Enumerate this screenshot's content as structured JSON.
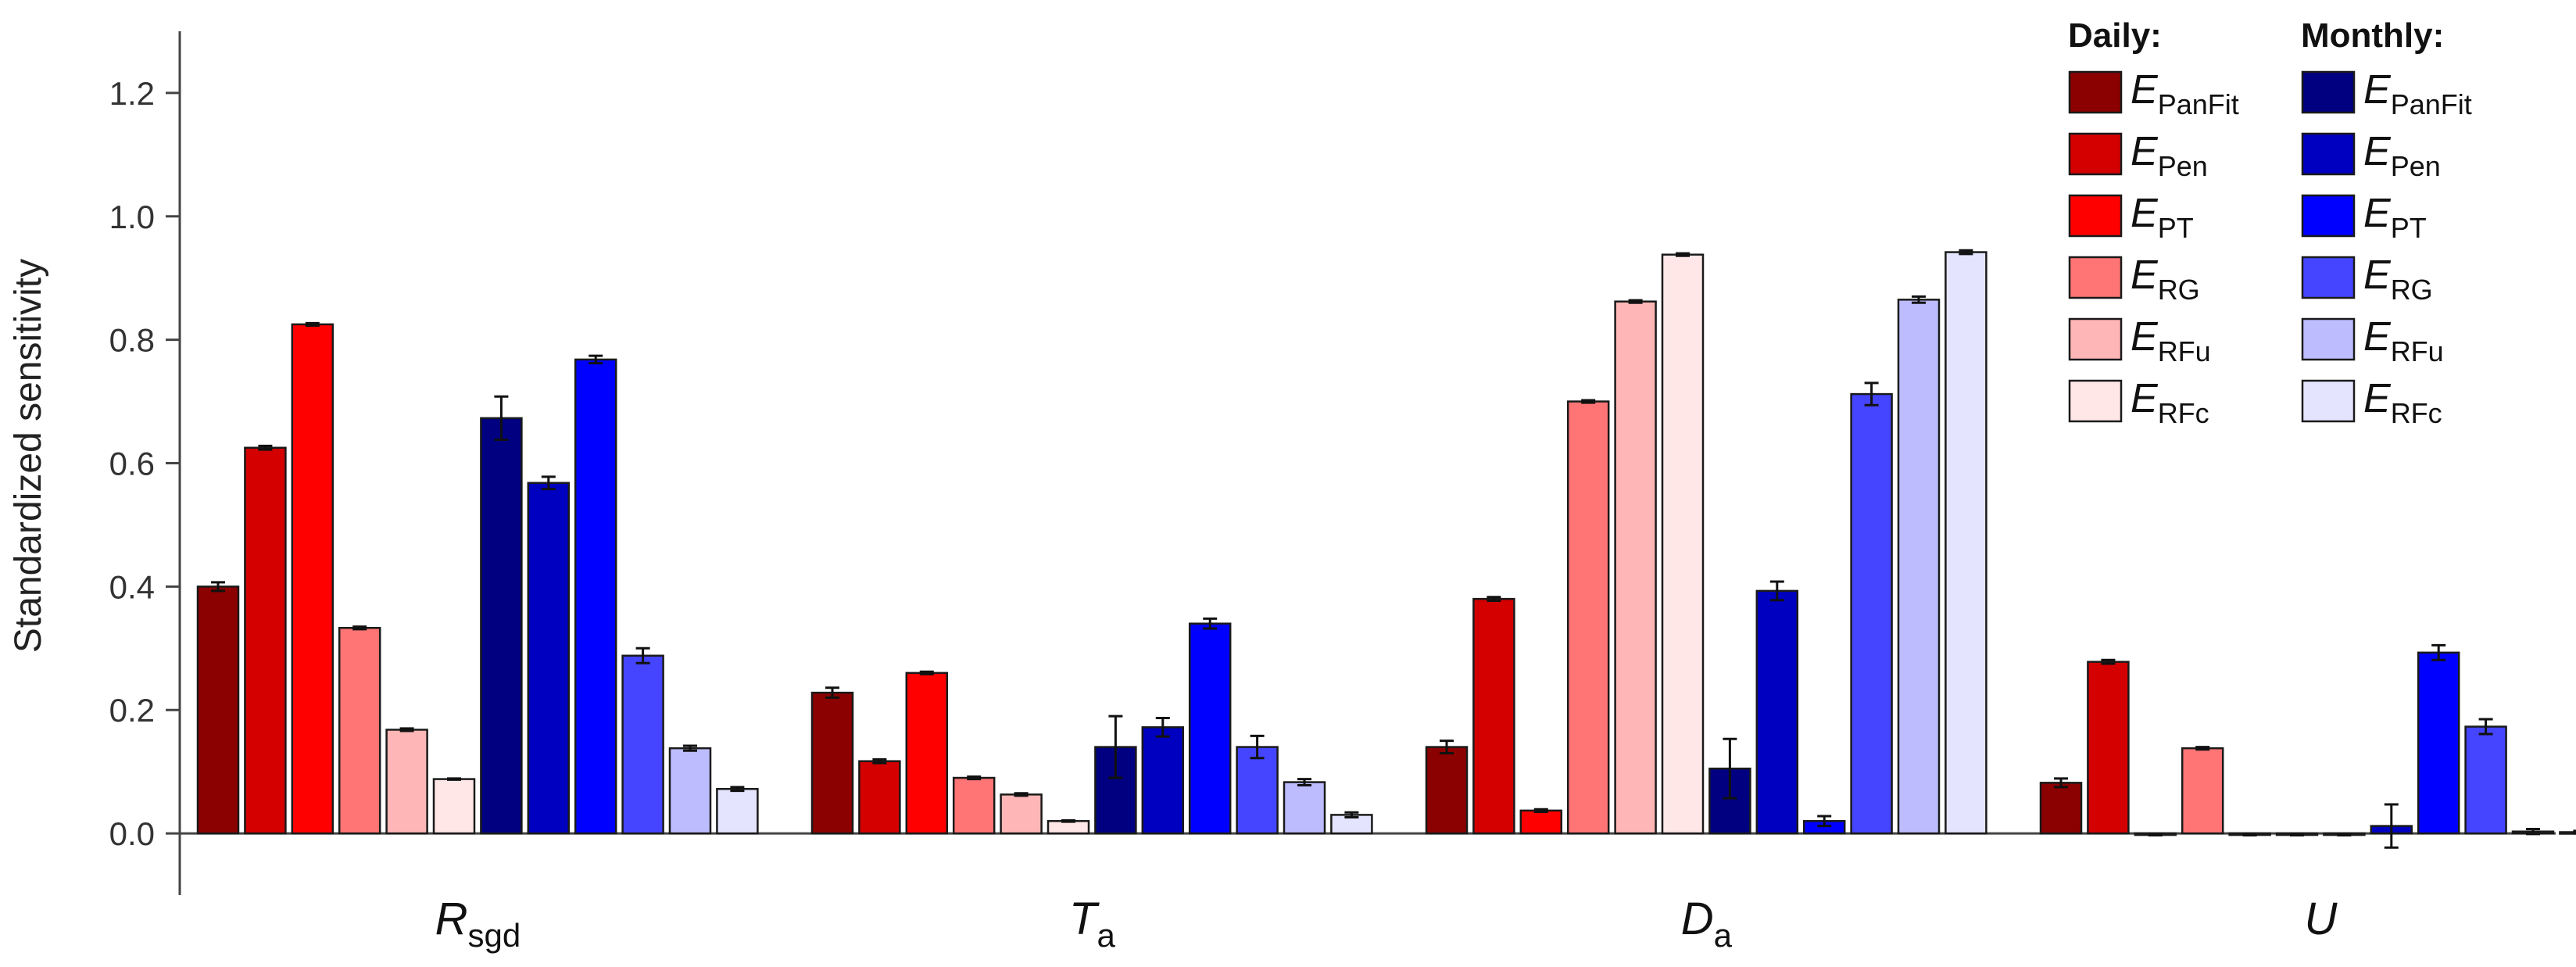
{
  "chart_data": {
    "type": "bar",
    "ylabel": "Standardized sensitivity",
    "ylim": [
      -0.1,
      1.3
    ],
    "yticks": [
      "0.0",
      "0.2",
      "0.4",
      "0.6",
      "0.8",
      "1.0",
      "1.2"
    ],
    "grid": false,
    "legend_position": "top-right",
    "categories": [
      {
        "main": "R",
        "sub": "sgd"
      },
      {
        "main": "T",
        "sub": "a"
      },
      {
        "main": "D",
        "sub": "a"
      },
      {
        "main": "U",
        "sub": ""
      }
    ],
    "legend_groups": [
      {
        "heading": "Daily:"
      },
      {
        "heading": "Monthly:"
      }
    ],
    "series": [
      {
        "group": "Daily:",
        "name": {
          "main": "E",
          "sub": "PanFit"
        },
        "color": "#8b0000",
        "values": [
          0.4,
          0.228,
          0.14,
          0.082
        ],
        "errors": [
          0.007,
          0.008,
          0.01,
          0.007
        ]
      },
      {
        "group": "Daily:",
        "name": {
          "main": "E",
          "sub": "Pen"
        },
        "color": "#d40000",
        "values": [
          0.625,
          0.117,
          0.38,
          0.278
        ],
        "errors": [
          0.003,
          0.003,
          0.003,
          0.003
        ]
      },
      {
        "group": "Daily:",
        "name": {
          "main": "E",
          "sub": "PT"
        },
        "color": "#ff0000",
        "values": [
          0.825,
          0.26,
          0.037,
          -0.002
        ],
        "errors": [
          0.002,
          0.002,
          0.002,
          0.001
        ]
      },
      {
        "group": "Daily:",
        "name": {
          "main": "E",
          "sub": "RG"
        },
        "color": "#ff7575",
        "values": [
          0.333,
          0.09,
          0.7,
          0.138
        ],
        "errors": [
          0.002,
          0.002,
          0.002,
          0.002
        ]
      },
      {
        "group": "Daily:",
        "name": {
          "main": "E",
          "sub": "RFu"
        },
        "color": "#ffb6b6",
        "values": [
          0.168,
          0.063,
          0.862,
          -0.002
        ],
        "errors": [
          0.002,
          0.002,
          0.002,
          0.001
        ]
      },
      {
        "group": "Daily:",
        "name": {
          "main": "E",
          "sub": "RFc"
        },
        "color": "#ffe7e7",
        "values": [
          0.088,
          0.02,
          0.938,
          -0.002
        ],
        "errors": [
          0.001,
          0.001,
          0.002,
          0.001
        ]
      },
      {
        "group": "Monthly:",
        "name": {
          "main": "E",
          "sub": "PanFit"
        },
        "color": "#000080",
        "values": [
          0.673,
          0.14,
          0.105,
          -0.002
        ],
        "errors": [
          0.035,
          0.05,
          0.048,
          0.001
        ]
      },
      {
        "group": "Monthly:",
        "name": {
          "main": "E",
          "sub": "Pen"
        },
        "color": "#0000c0",
        "values": [
          0.568,
          0.172,
          0.393,
          0.012
        ],
        "errors": [
          0.01,
          0.015,
          0.015,
          0.035
        ]
      },
      {
        "group": "Monthly:",
        "name": {
          "main": "E",
          "sub": "PT"
        },
        "color": "#0000ff",
        "values": [
          0.768,
          0.34,
          0.02,
          0.293
        ],
        "errors": [
          0.006,
          0.008,
          0.008,
          0.012
        ]
      },
      {
        "group": "Monthly:",
        "name": {
          "main": "E",
          "sub": "RG"
        },
        "color": "#4545ff",
        "values": [
          0.288,
          0.14,
          0.712,
          0.173
        ],
        "errors": [
          0.012,
          0.018,
          0.018,
          0.012
        ]
      },
      {
        "group": "Monthly:",
        "name": {
          "main": "E",
          "sub": "RFu"
        },
        "color": "#bcbcff",
        "values": [
          0.138,
          0.083,
          0.865,
          0.003
        ],
        "errors": [
          0.004,
          0.005,
          0.005,
          0.004
        ]
      },
      {
        "group": "Monthly:",
        "name": {
          "main": "E",
          "sub": "RFc"
        },
        "color": "#e4e4ff",
        "values": [
          0.072,
          0.03,
          0.942,
          0.002
        ],
        "errors": [
          0.003,
          0.004,
          0.003,
          0.002
        ]
      }
    ]
  }
}
